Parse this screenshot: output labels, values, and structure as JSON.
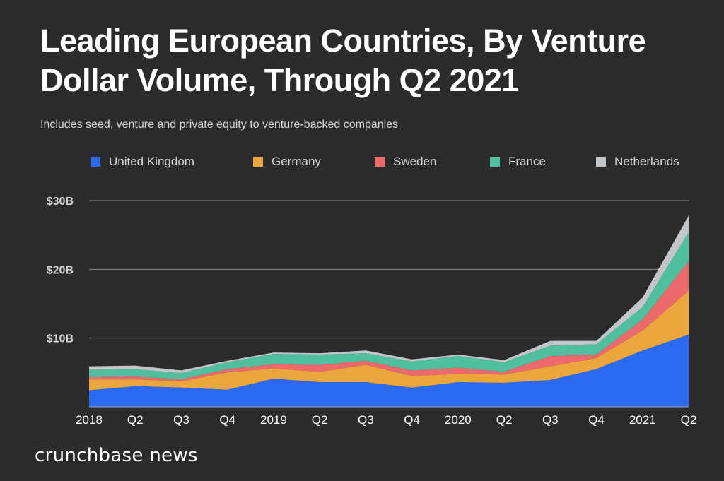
{
  "header": {
    "title": "Leading European Countries, By Venture Dollar Volume, Through Q2 2021",
    "subtitle": "Includes seed, venture and private equity to venture-backed companies"
  },
  "footer": {
    "brand": "crunchbase news"
  },
  "chart_data": {
    "type": "area",
    "stacked": true,
    "title": "Leading European Countries, By Venture Dollar Volume, Through Q2 2021",
    "subtitle": "Includes seed, venture and private equity to venture-backed companies",
    "xlabel": "",
    "ylabel": "",
    "x": [
      "2018",
      "Q2",
      "Q3",
      "Q4",
      "2019",
      "Q2",
      "Q3",
      "Q4",
      "2020",
      "Q2",
      "Q3",
      "Q4",
      "2021",
      "Q2"
    ],
    "ylim": [
      0,
      30
    ],
    "yticks": [
      10,
      20,
      30
    ],
    "ytick_labels": [
      "$10B",
      "$20B",
      "$30B"
    ],
    "unit": "billion USD",
    "grid": true,
    "legend_position": "top",
    "series": [
      {
        "name": "United Kingdom",
        "color": "#2b6af0",
        "values": [
          2.4,
          3.0,
          2.8,
          2.5,
          4.1,
          3.6,
          3.6,
          2.8,
          3.6,
          3.5,
          3.9,
          5.5,
          8.2,
          10.5
        ]
      },
      {
        "name": "Germany",
        "color": "#eba73e",
        "values": [
          1.6,
          1.0,
          0.9,
          2.5,
          1.5,
          1.5,
          2.5,
          1.7,
          1.2,
          1.2,
          2.0,
          1.6,
          2.9,
          6.4
        ]
      },
      {
        "name": "Sweden",
        "color": "#ec6a6c",
        "values": [
          0.3,
          0.4,
          0.3,
          0.5,
          0.6,
          1.0,
          0.6,
          0.8,
          0.9,
          0.4,
          1.5,
          0.5,
          1.6,
          4.3
        ]
      },
      {
        "name": "France",
        "color": "#4fbfa0",
        "values": [
          1.1,
          1.1,
          0.9,
          1.0,
          1.5,
          1.5,
          1.1,
          1.3,
          1.7,
          1.4,
          1.5,
          1.5,
          1.8,
          4.2
        ]
      },
      {
        "name": "Netherlands",
        "color": "#c3c6c8",
        "values": [
          0.5,
          0.5,
          0.4,
          0.2,
          0.2,
          0.2,
          0.4,
          0.3,
          0.2,
          0.3,
          0.7,
          0.5,
          1.4,
          2.4
        ]
      }
    ]
  }
}
